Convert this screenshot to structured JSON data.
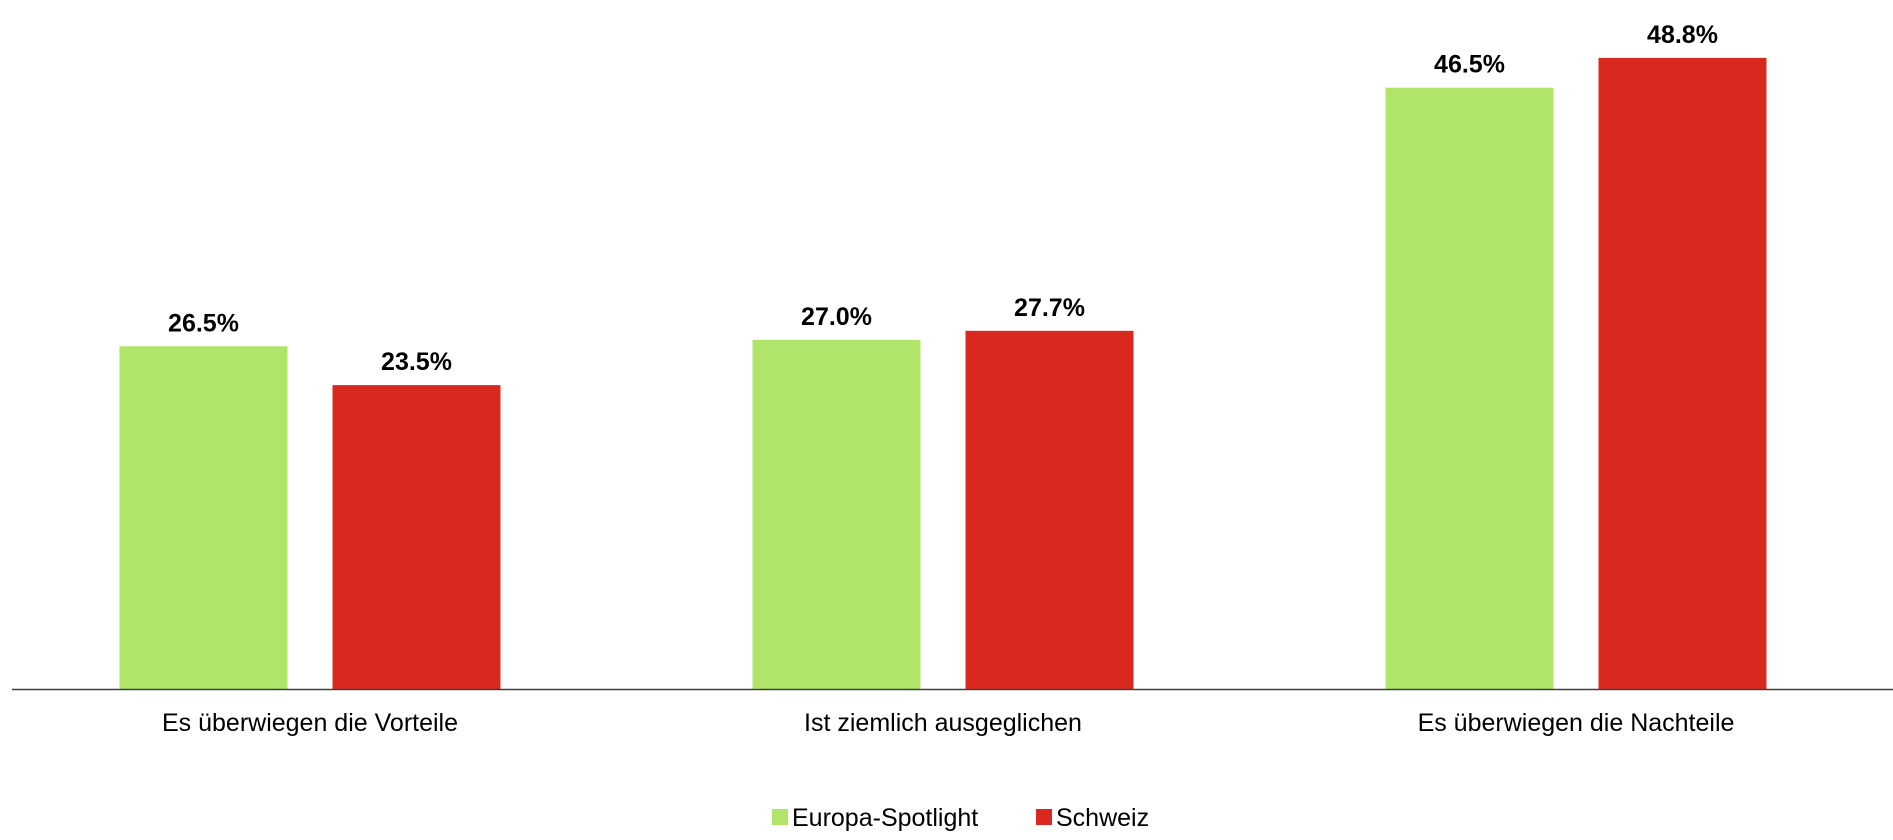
{
  "chart_data": {
    "type": "bar",
    "categories": [
      "Es überwiegen die Vorteile",
      "Ist ziemlich ausgeglichen",
      "Es überwiegen die Nachteile"
    ],
    "series": [
      {
        "name": "Europa-Spotlight",
        "values": [
          26.5,
          27.0,
          46.5
        ],
        "labels": [
          "26.5%",
          "27.0%",
          "46.5%"
        ],
        "color": "#b1e56a"
      },
      {
        "name": "Schweiz",
        "values": [
          23.5,
          27.7,
          48.8
        ],
        "labels": [
          "23.5%",
          "27.7%",
          "48.8%"
        ],
        "color": "#d9291e"
      }
    ],
    "title": "",
    "xlabel": "",
    "ylabel": "",
    "ylim": [
      0,
      51.5
    ],
    "grid": false,
    "axis_color": "#404040",
    "legend_position": "bottom"
  }
}
